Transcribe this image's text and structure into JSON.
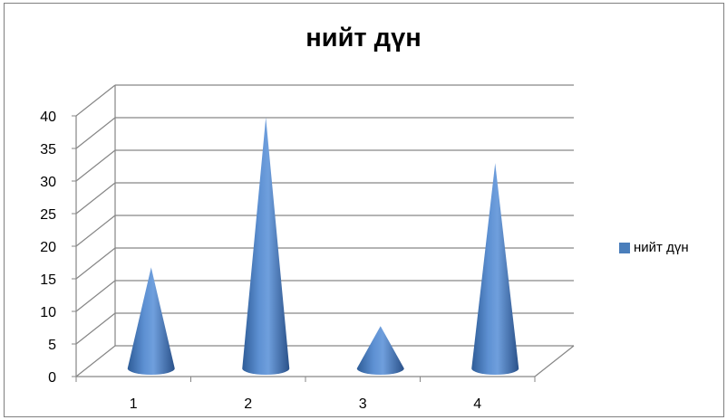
{
  "chart_data": {
    "type": "bar",
    "shape": "cone-3d",
    "title": "нийт дүн",
    "categories": [
      "1",
      "2",
      "3",
      "4"
    ],
    "series": [
      {
        "name": "нийт дүн",
        "values": [
          15.5,
          38.5,
          6.5,
          31.5
        ]
      }
    ],
    "y_ticks": [
      "0",
      "5",
      "10",
      "15",
      "20",
      "25",
      "30",
      "35",
      "40"
    ],
    "ylim": [
      0,
      40
    ],
    "grid": true,
    "legend_position": "right",
    "series_color": "#4a7ebb"
  }
}
